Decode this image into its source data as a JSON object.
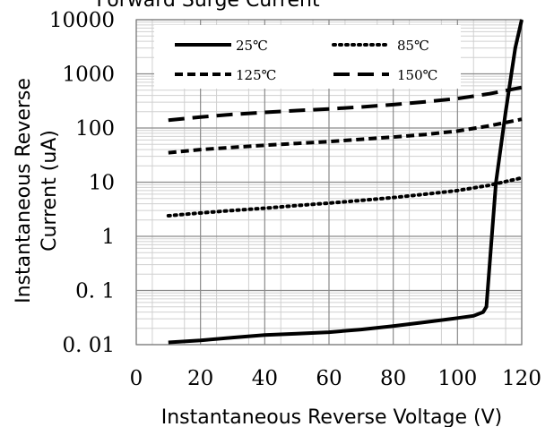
{
  "chart_data": {
    "type": "line",
    "title": "Forward Surge Current",
    "xlabel": "Instantaneous Reverse Voltage (V)",
    "ylabel_line1": "Instantaneous Reverse",
    "ylabel_line2": "Current (uA)",
    "x_scale": "linear",
    "y_scale": "log",
    "xlim": [
      0,
      120
    ],
    "ylim": [
      0.01,
      10000
    ],
    "x_ticks": [
      0,
      20,
      40,
      60,
      80,
      100,
      120
    ],
    "x_tick_labels": [
      "0",
      "20",
      "40",
      "60",
      "80",
      "100",
      "120"
    ],
    "y_ticks": [
      0.01,
      0.1,
      1,
      10,
      100,
      1000,
      10000
    ],
    "y_tick_labels": [
      "0. 01",
      "0. 1",
      "1",
      "10",
      "100",
      "1000",
      "10000"
    ],
    "grid": true,
    "legend_position": "top",
    "series": [
      {
        "name": "25℃",
        "style": "solid",
        "color": "#000000",
        "x": [
          10,
          20,
          30,
          40,
          50,
          60,
          70,
          80,
          90,
          100,
          105,
          108,
          109,
          110,
          112,
          115,
          118,
          120
        ],
        "y": [
          0.011,
          0.012,
          0.0135,
          0.015,
          0.016,
          0.017,
          0.019,
          0.022,
          0.026,
          0.031,
          0.034,
          0.04,
          0.05,
          0.3,
          10,
          200,
          3000,
          10000
        ]
      },
      {
        "name": "85℃",
        "style": "dotted",
        "color": "#000000",
        "x": [
          10,
          20,
          30,
          40,
          50,
          60,
          70,
          80,
          90,
          100,
          110,
          120
        ],
        "y": [
          2.4,
          2.7,
          3.0,
          3.3,
          3.7,
          4.1,
          4.6,
          5.2,
          6.0,
          7.0,
          8.8,
          12
        ]
      },
      {
        "name": "125℃",
        "style": "short-dash",
        "color": "#000000",
        "x": [
          10,
          20,
          30,
          40,
          50,
          60,
          70,
          80,
          90,
          100,
          110,
          120
        ],
        "y": [
          35,
          40,
          44,
          48,
          52,
          56,
          62,
          68,
          76,
          88,
          110,
          145
        ]
      },
      {
        "name": "150℃",
        "style": "long-dash",
        "color": "#000000",
        "x": [
          10,
          20,
          30,
          40,
          50,
          60,
          70,
          80,
          90,
          100,
          110,
          120
        ],
        "y": [
          140,
          160,
          178,
          195,
          210,
          225,
          245,
          270,
          305,
          350,
          430,
          560
        ]
      }
    ]
  }
}
